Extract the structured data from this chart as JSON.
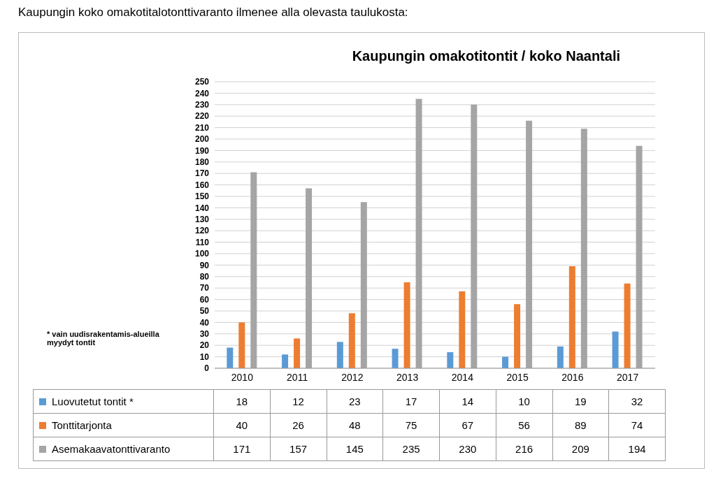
{
  "chart_data": {
    "type": "bar",
    "title": "Kaupungin omakotitontit / koko Naantali",
    "categories": [
      "2010",
      "2011",
      "2012",
      "2013",
      "2014",
      "2015",
      "2016",
      "2017"
    ],
    "series": [
      {
        "name": "Luovutetut tontit  *",
        "color": "#5b9bd5",
        "values": [
          18,
          12,
          23,
          17,
          14,
          10,
          19,
          32
        ]
      },
      {
        "name": "Tonttitarjonta",
        "color": "#ed7d31",
        "values": [
          40,
          26,
          48,
          75,
          67,
          56,
          89,
          74
        ]
      },
      {
        "name": "Asemakaavatonttivaranto",
        "color": "#a5a5a5",
        "values": [
          171,
          157,
          145,
          235,
          230,
          216,
          209,
          194
        ]
      }
    ],
    "ylim": [
      0,
      250
    ],
    "yticks": [
      0,
      10,
      20,
      30,
      40,
      50,
      60,
      70,
      80,
      90,
      100,
      110,
      120,
      130,
      140,
      150,
      160,
      170,
      180,
      190,
      200,
      210,
      220,
      230,
      240,
      250
    ],
    "grid": "y",
    "legend": "bottom",
    "data_labels": true,
    "annotations": [
      "Kaupungin koko omakotitalotonttivaranto ilmenee alla olevasta taulukosta:",
      "* vain uudisrakentamis-alueilla myydyt tontit"
    ]
  }
}
